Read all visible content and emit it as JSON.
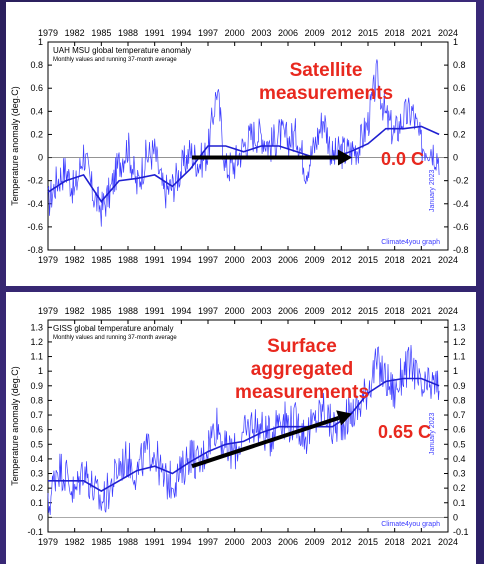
{
  "chart_data": [
    {
      "type": "line",
      "title": "UAH MSU global temperature anomaly",
      "subtitle": "Monthly values and running 37-month average",
      "ylabel": "Temperature anomaly (deg.C)",
      "xlabel": "",
      "xlim": [
        1979,
        2024
      ],
      "ylim": [
        -0.8,
        1.0
      ],
      "x_ticks": [
        1979,
        1982,
        1985,
        1988,
        1991,
        1994,
        1997,
        2000,
        2003,
        2006,
        2009,
        2012,
        2015,
        2018,
        2021,
        2024
      ],
      "y_ticks": [
        -0.8,
        -0.6,
        -0.4,
        -0.2,
        0,
        0.2,
        0.4,
        0.6,
        0.8,
        1
      ],
      "y_tick_labels": [
        "-0.8",
        "-0.6",
        "-0.4",
        "-0.2",
        "0",
        "0.2",
        "0.4",
        "0.6",
        "0.8",
        "1"
      ],
      "credit": "Climate4you graph",
      "date_note": "January 2023",
      "annotation": {
        "line1": "Satellite",
        "line2": "measurements",
        "line3": "",
        "value": "0.0 C"
      },
      "arrow": {
        "x1": 1995.2,
        "y1": 0.0,
        "x2": 2013.2,
        "y2": 0.0
      },
      "grid": false,
      "series": [
        {
          "kind": "monthly",
          "color": "#3b3bff",
          "x": [
            1979,
            1980,
            1981,
            1982,
            1983,
            1984,
            1985,
            1986,
            1987,
            1988,
            1989,
            1990,
            1991,
            1992,
            1993,
            1994,
            1995,
            1996,
            1997,
            1998,
            1999,
            2000,
            2001,
            2002,
            2003,
            2004,
            2005,
            2006,
            2007,
            2008,
            2009,
            2010,
            2011,
            2012,
            2013,
            2014,
            2015,
            2016,
            2017,
            2018,
            2019,
            2020,
            2021,
            2022,
            2023
          ],
          "values": [
            -0.4,
            -0.2,
            -0.1,
            -0.3,
            0.05,
            -0.3,
            -0.45,
            -0.3,
            -0.05,
            0.1,
            -0.25,
            0.0,
            0.05,
            -0.3,
            -0.25,
            -0.1,
            0.05,
            -0.05,
            0.05,
            0.6,
            -0.1,
            -0.05,
            0.1,
            0.2,
            0.2,
            0.1,
            0.2,
            0.15,
            0.2,
            -0.1,
            0.1,
            0.35,
            0.0,
            0.05,
            0.05,
            0.1,
            0.3,
            0.7,
            0.35,
            0.2,
            0.35,
            0.4,
            0.1,
            0.1,
            0.0
          ]
        },
        {
          "kind": "running_mean",
          "color": "#1f1fd0",
          "x": [
            1979,
            1981,
            1983,
            1985,
            1987,
            1989,
            1991,
            1993,
            1995,
            1997,
            1999,
            2001,
            2003,
            2005,
            2007,
            2009,
            2011,
            2013,
            2015,
            2017,
            2019,
            2021,
            2023
          ],
          "values": [
            -0.3,
            -0.2,
            -0.15,
            -0.38,
            -0.2,
            -0.18,
            -0.15,
            -0.25,
            -0.1,
            0.1,
            0.1,
            0.05,
            0.1,
            0.1,
            0.05,
            0.0,
            0.0,
            0.05,
            0.12,
            0.25,
            0.25,
            0.27,
            0.2
          ]
        }
      ]
    },
    {
      "type": "line",
      "title": "GISS global temperature anomaly",
      "subtitle": "Monthly values and running 37-month average",
      "ylabel": "Temperature anomaly (deg.C)",
      "xlabel": "",
      "xlim": [
        1979,
        2024
      ],
      "ylim": [
        -0.1,
        1.35
      ],
      "x_ticks": [
        1979,
        1982,
        1985,
        1988,
        1991,
        1994,
        1997,
        2000,
        2003,
        2006,
        2009,
        2012,
        2015,
        2018,
        2021,
        2024
      ],
      "y_ticks": [
        -0.1,
        0,
        0.1,
        0.2,
        0.3,
        0.4,
        0.5,
        0.6,
        0.7,
        0.8,
        0.9,
        1.0,
        1.1,
        1.2,
        1.3
      ],
      "y_tick_labels": [
        "-0.1",
        "0",
        "0.1",
        "0.2",
        "0.3",
        "0.4",
        "0.5",
        "0.6",
        "0.7",
        "0.8",
        "0.9",
        "1",
        "1.1",
        "1.2",
        "1.3"
      ],
      "credit": "Climate4you graph",
      "date_note": "January 2023",
      "annotation": {
        "line1": "Surface",
        "line2": "aggregated",
        "line3": "measurements",
        "value": "0.65 C"
      },
      "arrow": {
        "x1": 1995.2,
        "y1": 0.35,
        "x2": 2013.2,
        "y2": 0.71
      },
      "grid": false,
      "series": [
        {
          "kind": "monthly",
          "color": "#3b3bff",
          "x": [
            1979,
            1980,
            1981,
            1982,
            1983,
            1984,
            1985,
            1986,
            1987,
            1988,
            1989,
            1990,
            1991,
            1992,
            1993,
            1994,
            1995,
            1996,
            1997,
            1998,
            1999,
            2000,
            2001,
            2002,
            2003,
            2004,
            2005,
            2006,
            2007,
            2008,
            2009,
            2010,
            2011,
            2012,
            2013,
            2014,
            2015,
            2016,
            2017,
            2018,
            2019,
            2020,
            2021,
            2022,
            2023
          ],
          "values": [
            0.05,
            0.35,
            0.3,
            0.15,
            0.35,
            0.2,
            0.1,
            0.2,
            0.35,
            0.4,
            0.3,
            0.45,
            0.45,
            0.25,
            0.25,
            0.3,
            0.45,
            0.35,
            0.5,
            0.65,
            0.45,
            0.45,
            0.55,
            0.65,
            0.6,
            0.55,
            0.7,
            0.65,
            0.65,
            0.55,
            0.65,
            0.75,
            0.6,
            0.65,
            0.7,
            0.75,
            0.9,
            1.05,
            0.95,
            0.85,
            1.0,
            1.05,
            0.85,
            0.9,
            0.9
          ]
        },
        {
          "kind": "running_mean",
          "color": "#1f1fd0",
          "x": [
            1979,
            1981,
            1983,
            1985,
            1987,
            1989,
            1991,
            1993,
            1995,
            1997,
            1999,
            2001,
            2003,
            2005,
            2007,
            2009,
            2011,
            2013,
            2015,
            2017,
            2019,
            2021,
            2023
          ],
          "values": [
            0.25,
            0.25,
            0.25,
            0.18,
            0.25,
            0.32,
            0.35,
            0.3,
            0.38,
            0.45,
            0.5,
            0.52,
            0.58,
            0.62,
            0.62,
            0.62,
            0.62,
            0.7,
            0.85,
            0.93,
            0.95,
            0.95,
            0.9
          ]
        }
      ]
    }
  ]
}
